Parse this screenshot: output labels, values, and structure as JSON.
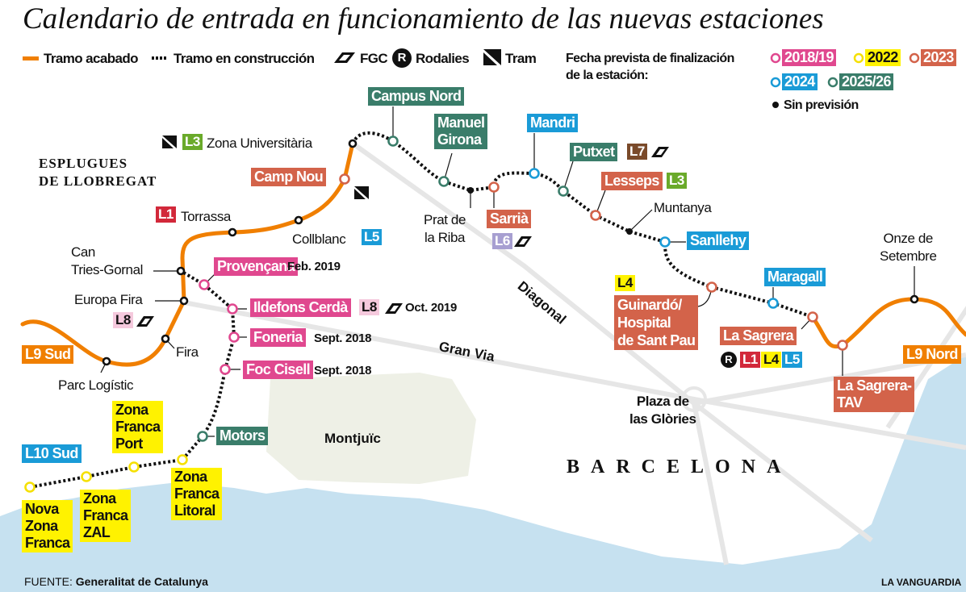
{
  "title": "Calendario de entrada en funcionamiento de las nuevas estaciones",
  "legend": {
    "finished": "Tramo acabado",
    "construction": "Tramo en construcción",
    "fgc": "FGC",
    "rodalies": "Rodalies",
    "rodalies_glyph": "R",
    "tram": "Tram",
    "date_title": "Fecha prevista de finalización\nde la estación:",
    "dates": [
      {
        "label": "2018/19",
        "color": "#e0488f"
      },
      {
        "label": "2022",
        "color": "#fff200"
      },
      {
        "label": "2023",
        "color": "#d3634a"
      },
      {
        "label": "2024",
        "color": "#1a9bd7"
      },
      {
        "label": "2025/26",
        "color": "#3a7d6a"
      }
    ],
    "no_forecast": "Sin previsión"
  },
  "colors": {
    "line_finished": "#f07f00",
    "construction": "#111111",
    "sea": "#c6e1f0",
    "park": "#eef0e6",
    "streets": "#e6e6e6"
  },
  "stations": {
    "campus_nord": "Campus Nord",
    "manuel_girona": "Manuel\nGirona",
    "mandri": "Mandri",
    "putxet": "Putxet",
    "lesseps": "Lesseps",
    "muntanya": "Muntanya",
    "sanllehy": "Sanllehy",
    "guinardo": "Guinardó/\nHospital\nde Sant Pau",
    "maragall": "Maragall",
    "la_sagrera": "La Sagrera",
    "la_sagrera_tav": "La Sagrera-\nTAV",
    "onze_setembre": "Onze de\nSetembre",
    "sarria": "Sarrià",
    "prat_riba": "Prat de\nla Riba",
    "zona_universitaria": "Zona Universitària",
    "camp_nou": "Camp Nou",
    "torrassa": "Torrassa",
    "collblanc": "Collblanc",
    "can_tries": "Can\nTries-Gornal",
    "europa_fira": "Europa Fira",
    "provencana": "Provençana",
    "ildefons": "Ildefons Cerdà",
    "foneria": "Foneria",
    "foc_cisell": "Foc Cisell",
    "fira": "Fira",
    "parc_logistic": "Parc Logístic",
    "motors": "Motors",
    "zf_port": "Zona\nFranca\nPort",
    "nova_zf": "Nova\nZona\nFranca",
    "zf_zal": "Zona\nFranca\nZAL",
    "zf_litoral": "Zona\nFranca\nLitoral"
  },
  "dates": {
    "provencana": "Feb. 2019",
    "ildefons": "Oct. 2019",
    "foneria": "Sept. 2018",
    "foc_cisell": "Sept. 2018"
  },
  "lines": {
    "l1": "L1",
    "l3": "L3",
    "l4": "L4",
    "l5": "L5",
    "l6": "L6",
    "l7": "L7",
    "l8": "L8",
    "l9_sud": "L9 Sud",
    "l9_nord": "L9 Nord",
    "l10_sud": "L10 Sud"
  },
  "places": {
    "esplugues": "ESPLUGUES\nDE LLOBREGAT",
    "montjuic": "Montjuïc",
    "diagonal": "Diagonal",
    "gran_via": "Gran Via",
    "glories": "Plaza de\nlas Glòries",
    "barcelona": "BARCELONA"
  },
  "footer": {
    "source_label": "FUENTE:",
    "source": "Generalitat de Catalunya",
    "brand": "LA VANGUARDIA"
  }
}
